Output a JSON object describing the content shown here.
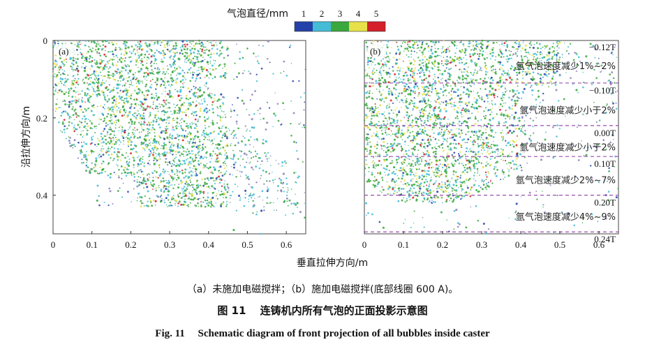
{
  "chart_data": {
    "type": "scatter",
    "colorbar": {
      "title": "气泡直径/mm",
      "labels": [
        "1",
        "2",
        "3",
        "4",
        "5"
      ],
      "colors": [
        "#2341a8",
        "#44bcd6",
        "#3aa83e",
        "#e8e04a",
        "#d4202a"
      ]
    },
    "xlabel": "垂直拉伸方向/m",
    "ylabel": "沿拉伸方向/m",
    "panels": [
      {
        "label": "(a)",
        "xlim": [
          0,
          0.65
        ],
        "ylim": [
          0.5,
          0
        ],
        "xticks": [
          "0",
          "0.1",
          "0.2",
          "0.3",
          "0.4",
          "0.5",
          "0.6"
        ],
        "yticks": [
          "0",
          "0.2",
          "0.4"
        ],
        "condition": "未施加电磁搅拌"
      },
      {
        "label": "(b)",
        "xlim": [
          0,
          0.65
        ],
        "ylim": [
          0.5,
          0
        ],
        "xticks": [
          "0",
          "0.1",
          "0.2",
          "0.3",
          "0.4",
          "0.5",
          "0.6"
        ],
        "condition": "施加电磁搅拌(底部线圈 600 A)",
        "field_lines": [
          {
            "y": 0.11,
            "label": "−0.10T"
          },
          {
            "y": 0.22,
            "label": "0.00T"
          },
          {
            "y": 0.3,
            "label": "0.10T"
          },
          {
            "y": 0.4,
            "label": "0.20T"
          },
          {
            "y": 0.495,
            "label": "0.24T"
          }
        ],
        "top_field_label": "−0.12T",
        "zones": [
          "氩气泡速度减少1%~2%",
          "氩气泡速度减少小于2%",
          "氩气泡速度减少小于2%",
          "氩气泡速度减少2%~7%",
          "氩气泡速度减少4%~9%"
        ]
      }
    ]
  },
  "caption": {
    "sub": "（a）未施加电磁搅拌；（b）施加电磁搅拌(底部线圈 600 A)。",
    "cn": "图 11　 连铸机内所有气泡的正面投影示意图",
    "en": "Fig. 11　 Schematic diagram of front projection of all bubbles inside caster"
  }
}
